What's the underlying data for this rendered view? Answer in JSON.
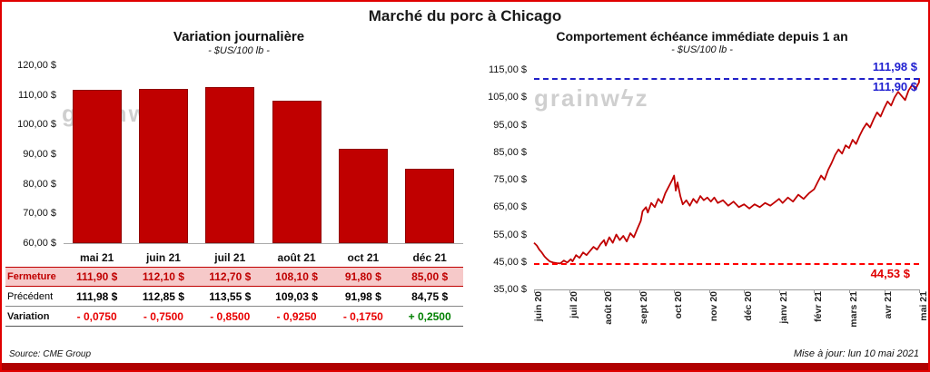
{
  "title": "Marché du porc à Chicago",
  "watermark": "grainwϟz",
  "left": {
    "title": "Variation  journalière",
    "subtitle": "- $US/100 lb -",
    "source": "Source: CME Group",
    "yticks": [
      "120,00 $",
      "110,00 $",
      "100,00 $",
      "90,00 $",
      "80,00 $",
      "70,00 $",
      "60,00 $"
    ],
    "table": {
      "rows": [
        {
          "label": "Fermeture",
          "style": "fermeture",
          "values": [
            "111,90  $",
            "112,10  $",
            "112,70  $",
            "108,10  $",
            "91,80  $",
            "85,00  $"
          ]
        },
        {
          "label": "Précédent",
          "style": "precedent",
          "values": [
            "111,98  $",
            "112,85  $",
            "113,55  $",
            "109,03  $",
            "91,98  $",
            "84,75  $"
          ]
        },
        {
          "label": "Variation",
          "style": "variation",
          "values": [
            "- 0,0750",
            "- 0,7500",
            "- 0,8500",
            "- 0,9250",
            "- 0,1750",
            "+ 0,2500"
          ],
          "value_colors": [
            "neg",
            "neg",
            "neg",
            "neg",
            "neg",
            "pos"
          ]
        }
      ]
    }
  },
  "right": {
    "title": "Comportement  échéance  immédiate  depuis 1 an",
    "subtitle": "- $US/100 lb -",
    "updated": "Mise à jour: lun 10 mai 2021",
    "yticks": [
      "115,00 $",
      "105,00 $",
      "95,00 $",
      "85,00 $",
      "75,00 $",
      "65,00 $",
      "55,00 $",
      "45,00 $",
      "35,00 $"
    ],
    "annotations": {
      "high": "111,98 $",
      "high2": "111,90 $",
      "low": "44,53 $"
    }
  },
  "chart_data": [
    {
      "type": "bar",
      "title": "Variation journalière",
      "ylabel": "$US/100 lb",
      "categories": [
        "mai 21",
        "juin 21",
        "juil 21",
        "août 21",
        "oct 21",
        "déc 21"
      ],
      "values": [
        111.9,
        112.1,
        112.7,
        108.1,
        91.8,
        85.0
      ],
      "ylim": [
        60,
        120
      ],
      "bar_color": "#c00000",
      "grid": false
    },
    {
      "type": "line",
      "title": "Comportement échéance immédiate depuis 1 an",
      "ylabel": "$US/100 lb",
      "ylim": [
        35,
        115
      ],
      "line_color": "#c00000",
      "grid": false,
      "x_categories": [
        "juin 20",
        "juil 20",
        "août 20",
        "sept 20",
        "oct 20",
        "nov 20",
        "déc 20",
        "janv 21",
        "févr 21",
        "mars 21",
        "avr 21",
        "mai 21"
      ],
      "ref_lines": [
        {
          "value": 111.98,
          "color": "#2020c8",
          "style": "dashed",
          "label": "111,98 $"
        },
        {
          "value": 44.53,
          "color": "#ff0000",
          "style": "dashed",
          "label": "44,53 $"
        }
      ],
      "points": [
        [
          0,
          52
        ],
        [
          0.08,
          51
        ],
        [
          0.15,
          49.5
        ],
        [
          0.22,
          48.5
        ],
        [
          0.3,
          47
        ],
        [
          0.38,
          46
        ],
        [
          0.45,
          45.2
        ],
        [
          0.55,
          44.8
        ],
        [
          0.65,
          44.6
        ],
        [
          0.75,
          44.5
        ],
        [
          0.85,
          45.5
        ],
        [
          0.95,
          44.8
        ],
        [
          1.05,
          46
        ],
        [
          1.1,
          45.2
        ],
        [
          1.2,
          47.5
        ],
        [
          1.3,
          46.5
        ],
        [
          1.4,
          48.5
        ],
        [
          1.5,
          47.5
        ],
        [
          1.6,
          49
        ],
        [
          1.7,
          50.5
        ],
        [
          1.8,
          49.5
        ],
        [
          1.9,
          51.5
        ],
        [
          2,
          53
        ],
        [
          2.05,
          51
        ],
        [
          2.15,
          54
        ],
        [
          2.25,
          52
        ],
        [
          2.35,
          55
        ],
        [
          2.45,
          53
        ],
        [
          2.55,
          54.5
        ],
        [
          2.65,
          52.5
        ],
        [
          2.75,
          55.5
        ],
        [
          2.85,
          54
        ],
        [
          2.95,
          57
        ],
        [
          3.05,
          60
        ],
        [
          3.1,
          63.5
        ],
        [
          3.2,
          65
        ],
        [
          3.25,
          63
        ],
        [
          3.35,
          66.5
        ],
        [
          3.45,
          65
        ],
        [
          3.55,
          68
        ],
        [
          3.65,
          66.5
        ],
        [
          3.75,
          70
        ],
        [
          3.85,
          72.5
        ],
        [
          3.95,
          75
        ],
        [
          4,
          76.5
        ],
        [
          4.05,
          71
        ],
        [
          4.1,
          74
        ],
        [
          4.18,
          69
        ],
        [
          4.25,
          66
        ],
        [
          4.35,
          67.5
        ],
        [
          4.45,
          65.5
        ],
        [
          4.55,
          68
        ],
        [
          4.65,
          66.5
        ],
        [
          4.75,
          69
        ],
        [
          4.85,
          67.5
        ],
        [
          4.95,
          68.5
        ],
        [
          5.05,
          67
        ],
        [
          5.15,
          68.5
        ],
        [
          5.25,
          66.5
        ],
        [
          5.4,
          67.5
        ],
        [
          5.55,
          65.5
        ],
        [
          5.7,
          67
        ],
        [
          5.85,
          65
        ],
        [
          6,
          66
        ],
        [
          6.15,
          64.5
        ],
        [
          6.3,
          66
        ],
        [
          6.45,
          65
        ],
        [
          6.6,
          66.5
        ],
        [
          6.75,
          65.5
        ],
        [
          6.9,
          67
        ],
        [
          7,
          68
        ],
        [
          7.1,
          66.5
        ],
        [
          7.25,
          68.5
        ],
        [
          7.4,
          67
        ],
        [
          7.55,
          69.5
        ],
        [
          7.7,
          68
        ],
        [
          7.85,
          70
        ],
        [
          8,
          71.5
        ],
        [
          8.1,
          74
        ],
        [
          8.2,
          76.5
        ],
        [
          8.3,
          75
        ],
        [
          8.4,
          78.5
        ],
        [
          8.5,
          81
        ],
        [
          8.6,
          84
        ],
        [
          8.7,
          86
        ],
        [
          8.8,
          84.5
        ],
        [
          8.9,
          87.5
        ],
        [
          9,
          86.5
        ],
        [
          9.1,
          89.5
        ],
        [
          9.2,
          88
        ],
        [
          9.3,
          91
        ],
        [
          9.4,
          93.5
        ],
        [
          9.5,
          95.5
        ],
        [
          9.6,
          94
        ],
        [
          9.7,
          97
        ],
        [
          9.8,
          99.5
        ],
        [
          9.9,
          98
        ],
        [
          10,
          101
        ],
        [
          10.1,
          103.5
        ],
        [
          10.2,
          102
        ],
        [
          10.3,
          105
        ],
        [
          10.4,
          107
        ],
        [
          10.5,
          105.5
        ],
        [
          10.6,
          104
        ],
        [
          10.7,
          107.5
        ],
        [
          10.8,
          109.5
        ],
        [
          10.9,
          108
        ],
        [
          11,
          110.5
        ],
        [
          11,
          112
        ]
      ]
    }
  ]
}
